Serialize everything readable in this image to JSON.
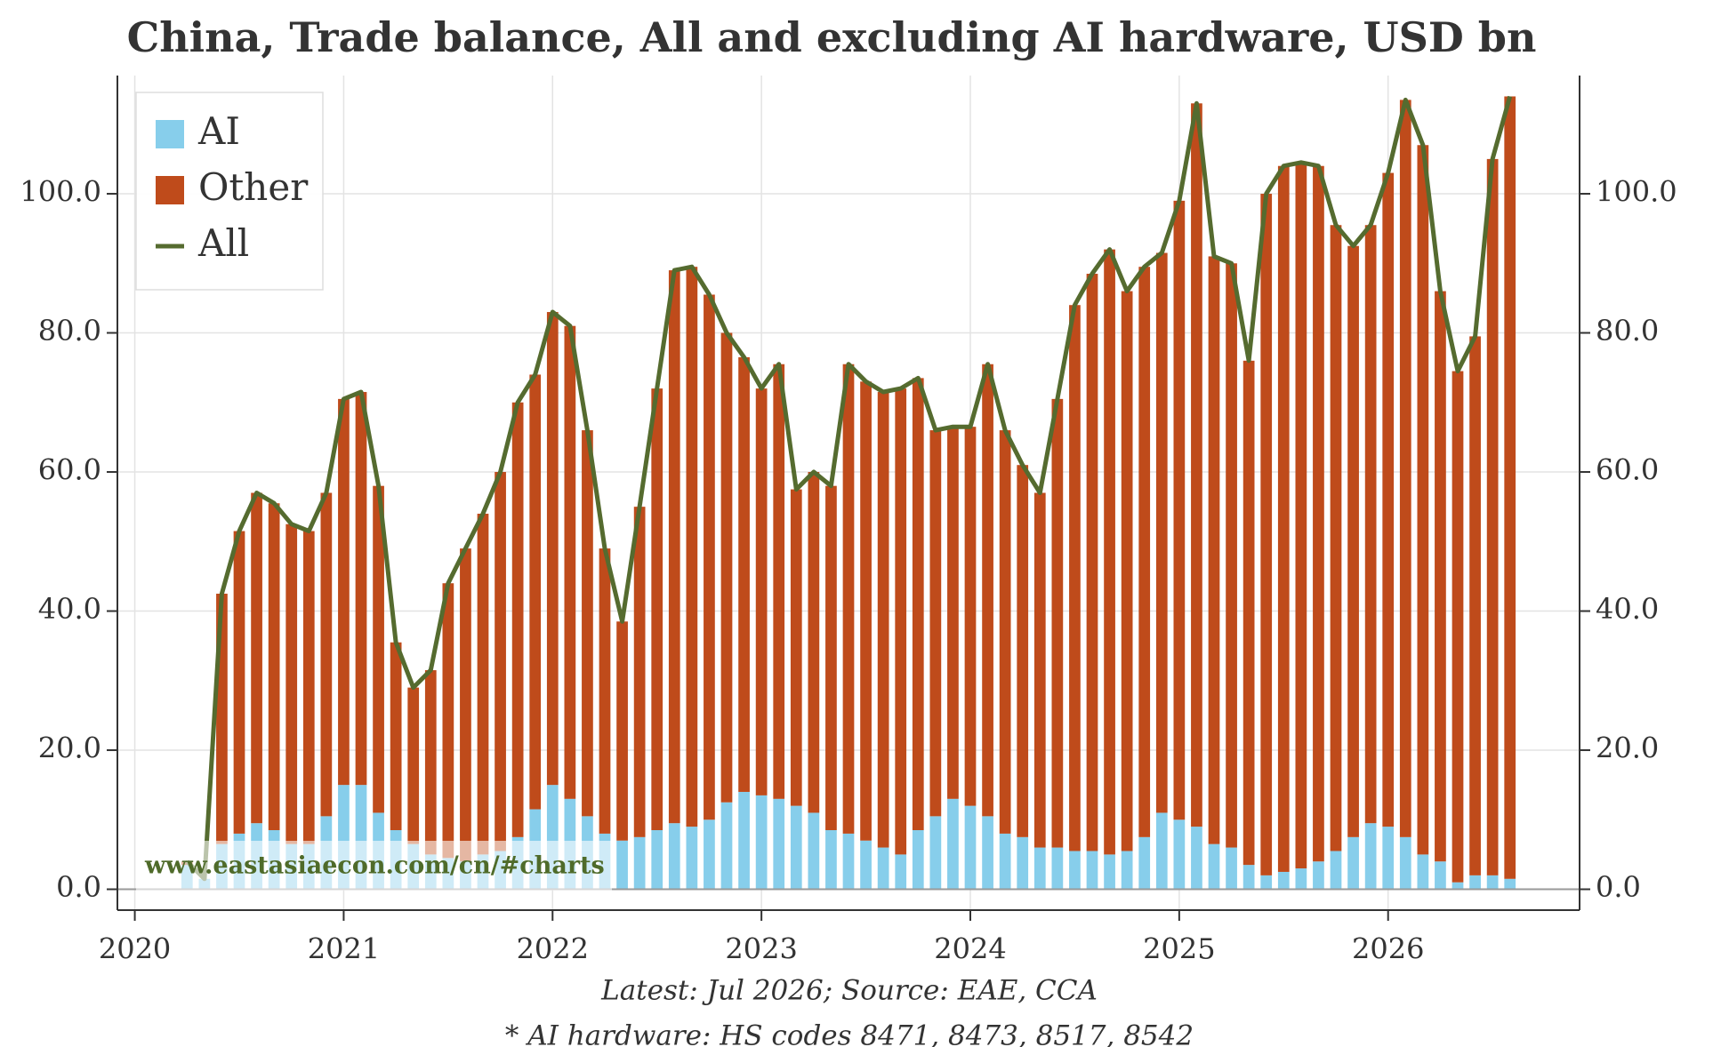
{
  "chart_data": {
    "type": "stacked_bar_line",
    "title": "China, Trade balance, All and excluding AI hardware, USD bn",
    "notes": [
      "Latest: Jul 2026; Source: EAE, CCA",
      "* AI hardware: HS codes 8471, 8473, 8517, 8542"
    ],
    "watermark": "www.eastasiaecon.com/cn/#charts",
    "x": [
      "2020-03",
      "2020-04",
      "2020-05",
      "2020-06",
      "2020-07",
      "2020-08",
      "2020-09",
      "2020-10",
      "2020-11",
      "2020-12",
      "2021-01",
      "2021-02",
      "2021-03",
      "2021-04",
      "2021-05",
      "2021-06",
      "2021-07",
      "2021-08",
      "2021-09",
      "2021-10",
      "2021-11",
      "2021-12",
      "2022-01",
      "2022-02",
      "2022-03",
      "2022-04",
      "2022-05",
      "2022-06",
      "2022-07",
      "2022-08",
      "2022-09",
      "2022-10",
      "2022-11",
      "2022-12",
      "2023-01",
      "2023-02",
      "2023-03",
      "2023-04",
      "2023-05",
      "2023-06",
      "2023-07",
      "2023-08",
      "2023-09",
      "2023-10",
      "2023-11",
      "2023-12",
      "2024-01",
      "2024-02",
      "2024-03",
      "2024-04",
      "2024-05",
      "2024-06",
      "2024-07",
      "2024-08",
      "2024-09",
      "2024-10",
      "2024-11",
      "2024-12",
      "2025-01",
      "2025-02",
      "2025-03",
      "2025-04",
      "2025-05",
      "2025-06",
      "2025-07",
      "2025-08",
      "2025-09",
      "2025-10",
      "2025-11",
      "2025-12",
      "2026-01",
      "2026-02",
      "2026-03",
      "2026-04",
      "2026-05",
      "2026-06",
      "2026-07"
    ],
    "series": [
      {
        "name": "AI",
        "color": "#87ceeb",
        "values": [
          3.5,
          1.5,
          6.5,
          8,
          9.5,
          8.5,
          6.5,
          6.5,
          10.5,
          15,
          15,
          11,
          8.5,
          6.5,
          5,
          4.5,
          4,
          5,
          5.5,
          7.5,
          11.5,
          15,
          13,
          10.5,
          8,
          7,
          7.5,
          8.5,
          9.5,
          9,
          10,
          12.5,
          14,
          13.5,
          13,
          12,
          11,
          8.5,
          8,
          7,
          6,
          5,
          8.5,
          10.5,
          13,
          12,
          10.5,
          8,
          7.5,
          6,
          6,
          5.5,
          5.5,
          5,
          5.5,
          7.5,
          11,
          10,
          9,
          6.5,
          6,
          3.5,
          2,
          2.5,
          3,
          4,
          5.5,
          7.5,
          9.5,
          9,
          7.5,
          5,
          4,
          1,
          2,
          2,
          1.5
        ]
      },
      {
        "name": "Other",
        "color": "#bf4b1b",
        "values": [
          0.5,
          0,
          36,
          43.5,
          47.5,
          47,
          46,
          45,
          46.5,
          55.5,
          56.5,
          47,
          27,
          22.5,
          26.5,
          39.5,
          45,
          49,
          54.5,
          62.5,
          62.5,
          68,
          68,
          55.5,
          41,
          31.5,
          47.5,
          63.5,
          79.5,
          80.5,
          75.5,
          67.5,
          62.5,
          58.5,
          62.5,
          45.5,
          49,
          49.5,
          67.5,
          66,
          65.5,
          67,
          65,
          55.5,
          53.5,
          54.5,
          65,
          58,
          53.5,
          51,
          64.5,
          78.5,
          83,
          87,
          80.5,
          82,
          80.5,
          89,
          104,
          84.5,
          84,
          72.5,
          98,
          101.5,
          101.5,
          100,
          90,
          85,
          86,
          94,
          106,
          102,
          82,
          73.5,
          77.5,
          103,
          112.5
        ]
      },
      {
        "name": "All",
        "color": "#556b2f",
        "values": [
          4,
          1.5,
          42.5,
          51.5,
          57,
          55.5,
          52.5,
          51.5,
          57,
          70.5,
          71.5,
          58,
          35.5,
          29,
          31.5,
          44,
          49,
          54,
          60,
          70,
          74,
          83,
          81,
          66,
          49,
          38.5,
          55,
          72,
          89,
          89.5,
          85.5,
          80,
          76.5,
          72,
          75.5,
          57.5,
          60,
          58,
          75.5,
          73,
          71.5,
          72,
          73.5,
          66,
          66.5,
          66.5,
          75.5,
          66,
          61,
          57,
          70.5,
          84,
          88.5,
          92,
          86,
          89.5,
          91.5,
          99,
          113,
          91,
          90,
          76,
          100,
          104,
          104.5,
          104,
          95.5,
          92.5,
          95.5,
          103,
          113.5,
          107,
          86,
          74.5,
          79.5,
          105,
          114
        ]
      }
    ],
    "xlim": [
      "2019-12",
      "2026-12"
    ],
    "xticks": [
      {
        "value": "2020-01",
        "label": "2020"
      },
      {
        "value": "2021-01",
        "label": "2021"
      },
      {
        "value": "2022-01",
        "label": "2022"
      },
      {
        "value": "2023-01",
        "label": "2023"
      },
      {
        "value": "2024-01",
        "label": "2024"
      },
      {
        "value": "2025-01",
        "label": "2025"
      },
      {
        "value": "2026-01",
        "label": "2026"
      }
    ],
    "ylim": [
      -3,
      117
    ],
    "yticks": [
      {
        "value": 0,
        "label": "0.0"
      },
      {
        "value": 20,
        "label": "20.0"
      },
      {
        "value": 40,
        "label": "40.0"
      },
      {
        "value": 60,
        "label": "60.0"
      },
      {
        "value": 80,
        "label": "80.0"
      },
      {
        "value": 100,
        "label": "100.0"
      }
    ],
    "grid": true,
    "legend": "upper left"
  }
}
